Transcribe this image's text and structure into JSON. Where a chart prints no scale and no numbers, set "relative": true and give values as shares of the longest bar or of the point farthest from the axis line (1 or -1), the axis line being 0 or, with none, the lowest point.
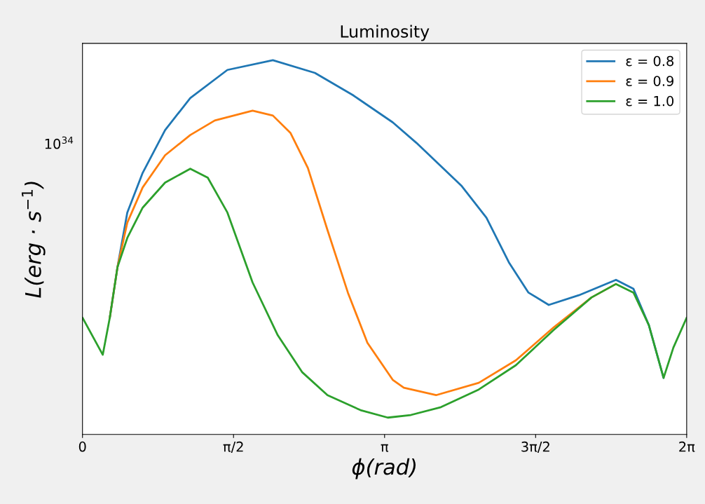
{
  "chart_data": {
    "type": "line",
    "title": "Luminosity",
    "xlabel": "ϕ(rad)",
    "ylabel": "L(erg · s$^{−1}$)",
    "relative": true,
    "legend": "top right",
    "marker": "none",
    "line_style": "solid",
    "xlim": [
      0,
      6.2832
    ],
    "xticks": [
      0,
      {
        "value": 1.5708,
        "label": "π/2"
      },
      {
        "value": 3.1416,
        "label": "π"
      },
      {
        "value": 4.7124,
        "label": "3π/2"
      },
      {
        "value": 6.2832,
        "label": "2π"
      }
    ],
    "annotations": [
      "10$^{34}$"
    ],
    "series": [
      {
        "name": "ε = 0.8",
        "color": "#1f77b4",
        "x": [
          0.284,
          0.364,
          0.466,
          0.626,
          0.859,
          1.121,
          1.507,
          1.98,
          2.417,
          2.81,
          3.226,
          3.473,
          3.939,
          4.201,
          4.434,
          4.638,
          4.849,
          5.162,
          5.548,
          5.73,
          5.89,
          6.043
        ],
        "values": [
          0.312,
          0.447,
          0.593,
          0.699,
          0.813,
          0.899,
          0.974,
          1,
          0.966,
          0.907,
          0.834,
          0.779,
          0.665,
          0.579,
          0.46,
          0.379,
          0.346,
          0.372,
          0.413,
          0.389,
          0.292,
          0.151
        ]
      },
      {
        "name": "ε = 0.9",
        "color": "#ff7f0e",
        "x": [
          0.284,
          0.364,
          0.466,
          0.626,
          0.859,
          1.121,
          1.376,
          1.769,
          1.98,
          2.162,
          2.344,
          2.548,
          2.76,
          2.963,
          3.226,
          3.342,
          3.677,
          4.121,
          4.507,
          4.9,
          5.293,
          5.548
        ],
        "values": [
          0.312,
          0.447,
          0.566,
          0.66,
          0.746,
          0.8,
          0.839,
          0.865,
          0.852,
          0.806,
          0.712,
          0.546,
          0.379,
          0.245,
          0.146,
          0.125,
          0.105,
          0.138,
          0.198,
          0.286,
          0.366,
          0.402
        ]
      },
      {
        "name": "ε = 1.0",
        "color": "#2ca02c",
        "x": [
          0,
          0.211,
          0.284,
          0.364,
          0.466,
          0.626,
          0.859,
          1.121,
          1.303,
          1.507,
          1.769,
          2.031,
          2.286,
          2.548,
          2.891,
          3.175,
          3.415,
          3.728,
          4.121,
          4.507,
          4.9,
          5.293,
          5.548,
          5.73,
          5.89,
          6.043,
          6.145,
          6.283
        ],
        "values": [
          0.312,
          0.213,
          0.312,
          0.447,
          0.525,
          0.606,
          0.673,
          0.71,
          0.686,
          0.593,
          0.406,
          0.265,
          0.166,
          0.105,
          0.065,
          0.045,
          0.052,
          0.073,
          0.12,
          0.185,
          0.279,
          0.366,
          0.402,
          0.379,
          0.292,
          0.151,
          0.232,
          0.312
        ]
      }
    ]
  }
}
